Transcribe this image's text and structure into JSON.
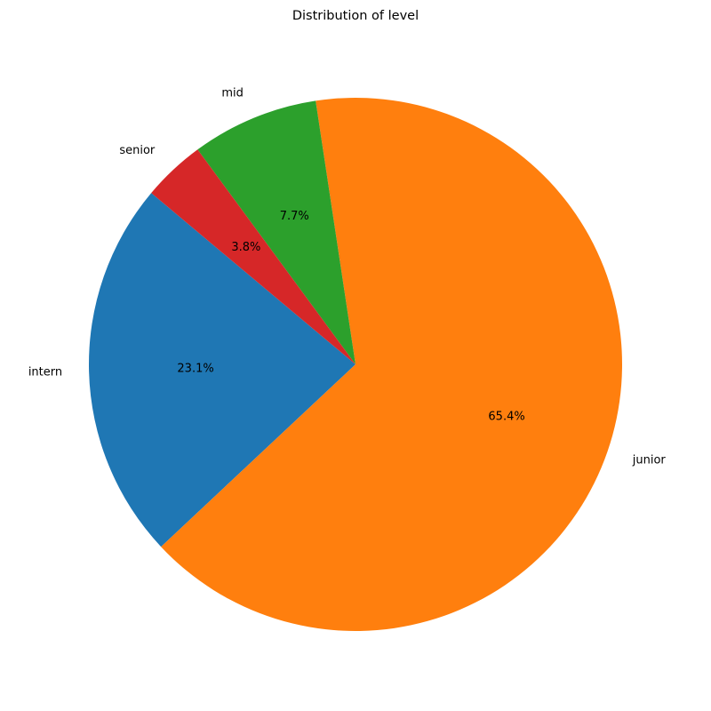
{
  "chart_data": {
    "type": "pie",
    "title": "Distribution of level",
    "start_angle_deg": 140,
    "direction": "counterclockwise",
    "slices": [
      {
        "label": "intern",
        "percent": 23.1,
        "percent_label": "23.1%",
        "color": "#1f77b4"
      },
      {
        "label": "junior",
        "percent": 65.4,
        "percent_label": "65.4%",
        "color": "#ff7f0e"
      },
      {
        "label": "mid",
        "percent": 7.7,
        "percent_label": "7.7%",
        "color": "#2ca02c"
      },
      {
        "label": "senior",
        "percent": 3.8,
        "percent_label": "3.8%",
        "color": "#d62728"
      }
    ]
  }
}
